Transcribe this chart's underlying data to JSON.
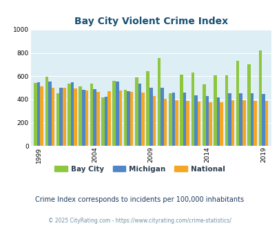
{
  "title": "Bay City Violent Crime Index",
  "subtitle": "Crime Index corresponds to incidents per 100,000 inhabitants",
  "footer": "© 2025 CityRating.com - https://www.cityrating.com/crime-statistics/",
  "years": [
    1999,
    2000,
    2001,
    2002,
    2003,
    2004,
    2005,
    2006,
    2007,
    2008,
    2009,
    2010,
    2011,
    2012,
    2013,
    2014,
    2015,
    2016,
    2017,
    2018,
    2019
  ],
  "bay_city": [
    540,
    595,
    455,
    535,
    510,
    535,
    420,
    560,
    480,
    590,
    645,
    755,
    450,
    615,
    630,
    530,
    605,
    605,
    730,
    700,
    820
  ],
  "michigan": [
    550,
    555,
    500,
    545,
    480,
    490,
    425,
    555,
    470,
    535,
    500,
    500,
    460,
    460,
    435,
    430,
    420,
    455,
    450,
    450,
    445
  ],
  "national": [
    510,
    500,
    500,
    495,
    475,
    465,
    470,
    475,
    465,
    460,
    430,
    405,
    395,
    390,
    380,
    375,
    375,
    395,
    395,
    385,
    385
  ],
  "bay_city_color": "#8dc63f",
  "michigan_color": "#4f86c6",
  "national_color": "#f5a623",
  "plot_bg": "#ddeef5",
  "ylim": [
    0,
    1000
  ],
  "yticks": [
    0,
    200,
    400,
    600,
    800,
    1000
  ],
  "xtick_positions": [
    1999,
    2004,
    2009,
    2014,
    2019
  ],
  "legend_labels": [
    "Bay City",
    "Michigan",
    "National"
  ],
  "title_color": "#1a5276",
  "subtitle_color": "#1a3a5c",
  "footer_color": "#7090a0"
}
